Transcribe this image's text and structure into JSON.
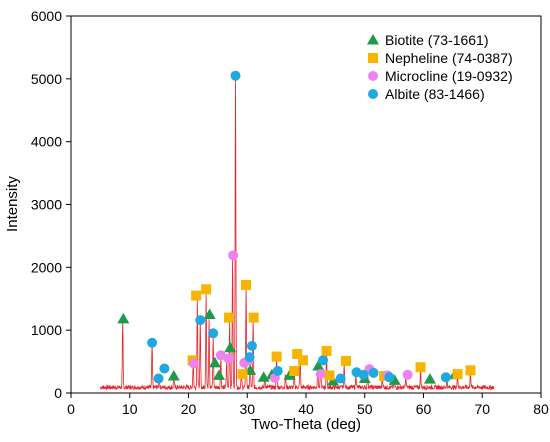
{
  "chart_data": {
    "type": "line",
    "xlabel": "Two-Theta (deg)",
    "ylabel": "Intensity",
    "xlim": [
      0,
      80
    ],
    "ylim": [
      0,
      6000
    ],
    "x_ticks": [
      0,
      10,
      20,
      30,
      40,
      50,
      60,
      70,
      80
    ],
    "y_ticks": [
      0,
      1000,
      2000,
      3000,
      4000,
      5000,
      6000
    ],
    "grid": false,
    "legend_position": "top-right",
    "colors": {
      "pattern": "#e8232b",
      "biotite": "#1f9a48",
      "nepheline": "#f7b500",
      "microcline": "#ee82ee",
      "albite": "#1fa9e1"
    },
    "pattern": {
      "x_range": [
        5,
        72
      ],
      "baseline": 90,
      "peaks": [
        {
          "x": 8.8,
          "y": 1150
        },
        {
          "x": 13.8,
          "y": 780
        },
        {
          "x": 15.0,
          "y": 300
        },
        {
          "x": 17.5,
          "y": 250
        },
        {
          "x": 20.8,
          "y": 500
        },
        {
          "x": 21.5,
          "y": 1500
        },
        {
          "x": 22.0,
          "y": 1150
        },
        {
          "x": 23.0,
          "y": 1600
        },
        {
          "x": 23.5,
          "y": 1200
        },
        {
          "x": 24.2,
          "y": 900
        },
        {
          "x": 25.5,
          "y": 580
        },
        {
          "x": 26.5,
          "y": 520
        },
        {
          "x": 27.0,
          "y": 1150
        },
        {
          "x": 27.5,
          "y": 2150
        },
        {
          "x": 28.0,
          "y": 5050
        },
        {
          "x": 29.0,
          "y": 320
        },
        {
          "x": 29.8,
          "y": 1700
        },
        {
          "x": 30.5,
          "y": 550
        },
        {
          "x": 31.0,
          "y": 1150
        },
        {
          "x": 33.0,
          "y": 250
        },
        {
          "x": 35.0,
          "y": 550
        },
        {
          "x": 36.5,
          "y": 300
        },
        {
          "x": 38.0,
          "y": 350
        },
        {
          "x": 39.0,
          "y": 580
        },
        {
          "x": 42.0,
          "y": 450
        },
        {
          "x": 42.5,
          "y": 500
        },
        {
          "x": 43.5,
          "y": 650
        },
        {
          "x": 46.5,
          "y": 450
        },
        {
          "x": 48.5,
          "y": 300
        },
        {
          "x": 50.5,
          "y": 350
        },
        {
          "x": 53.0,
          "y": 250
        },
        {
          "x": 55.0,
          "y": 200
        },
        {
          "x": 57.0,
          "y": 250
        },
        {
          "x": 59.5,
          "y": 380
        },
        {
          "x": 64.0,
          "y": 230
        },
        {
          "x": 65.8,
          "y": 280
        },
        {
          "x": 68.0,
          "y": 330
        }
      ]
    },
    "series": [
      {
        "name": "Biotite (73-1661)",
        "marker": "triangle",
        "points": [
          {
            "x": 8.9,
            "y": 1180
          },
          {
            "x": 17.5,
            "y": 270
          },
          {
            "x": 23.6,
            "y": 1250
          },
          {
            "x": 24.5,
            "y": 480
          },
          {
            "x": 25.2,
            "y": 280
          },
          {
            "x": 27.1,
            "y": 720
          },
          {
            "x": 30.5,
            "y": 360
          },
          {
            "x": 32.8,
            "y": 250
          },
          {
            "x": 34.2,
            "y": 290
          },
          {
            "x": 37.2,
            "y": 280
          },
          {
            "x": 42.1,
            "y": 430
          },
          {
            "x": 44.6,
            "y": 190
          },
          {
            "x": 50.0,
            "y": 230
          },
          {
            "x": 55.1,
            "y": 200
          },
          {
            "x": 61.1,
            "y": 220
          },
          {
            "x": 65.3,
            "y": 290
          }
        ]
      },
      {
        "name": "Nepheline (74-0387)",
        "marker": "square",
        "points": [
          {
            "x": 20.7,
            "y": 520
          },
          {
            "x": 21.3,
            "y": 1550
          },
          {
            "x": 23.0,
            "y": 1650
          },
          {
            "x": 26.9,
            "y": 1200
          },
          {
            "x": 29.2,
            "y": 300
          },
          {
            "x": 29.8,
            "y": 1720
          },
          {
            "x": 31.1,
            "y": 1200
          },
          {
            "x": 35.0,
            "y": 580
          },
          {
            "x": 38.0,
            "y": 350
          },
          {
            "x": 38.5,
            "y": 620
          },
          {
            "x": 39.5,
            "y": 520
          },
          {
            "x": 43.5,
            "y": 670
          },
          {
            "x": 44.0,
            "y": 280
          },
          {
            "x": 46.8,
            "y": 510
          },
          {
            "x": 53.3,
            "y": 270
          },
          {
            "x": 59.5,
            "y": 410
          },
          {
            "x": 65.8,
            "y": 300
          },
          {
            "x": 68.0,
            "y": 360
          }
        ]
      },
      {
        "name": "Microcline (19-0932)",
        "marker": "circle",
        "points": [
          {
            "x": 20.9,
            "y": 470
          },
          {
            "x": 25.5,
            "y": 600
          },
          {
            "x": 26.8,
            "y": 550
          },
          {
            "x": 27.6,
            "y": 2190
          },
          {
            "x": 29.5,
            "y": 480
          },
          {
            "x": 30.3,
            "y": 520
          },
          {
            "x": 34.7,
            "y": 240
          },
          {
            "x": 42.5,
            "y": 300
          },
          {
            "x": 50.8,
            "y": 380
          },
          {
            "x": 53.9,
            "y": 280
          },
          {
            "x": 57.3,
            "y": 290
          }
        ]
      },
      {
        "name": "Albite (83-1466)",
        "marker": "circle",
        "points": [
          {
            "x": 13.8,
            "y": 800
          },
          {
            "x": 14.9,
            "y": 230
          },
          {
            "x": 15.9,
            "y": 390
          },
          {
            "x": 22.0,
            "y": 1160
          },
          {
            "x": 24.2,
            "y": 950
          },
          {
            "x": 28.0,
            "y": 5050
          },
          {
            "x": 30.4,
            "y": 570
          },
          {
            "x": 30.8,
            "y": 750
          },
          {
            "x": 35.2,
            "y": 350
          },
          {
            "x": 42.9,
            "y": 520
          },
          {
            "x": 45.9,
            "y": 230
          },
          {
            "x": 48.6,
            "y": 330
          },
          {
            "x": 49.8,
            "y": 290
          },
          {
            "x": 51.5,
            "y": 320
          },
          {
            "x": 54.2,
            "y": 250
          },
          {
            "x": 63.8,
            "y": 250
          }
        ]
      }
    ]
  }
}
